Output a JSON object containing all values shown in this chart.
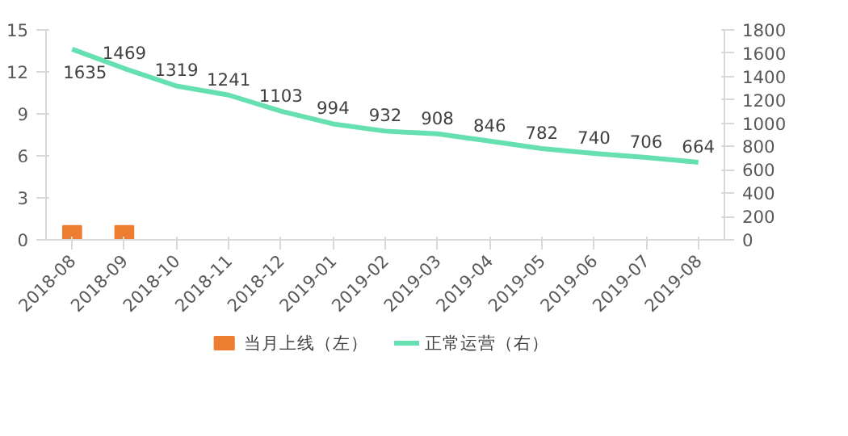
{
  "chart_data": {
    "type": "bar",
    "categories": [
      "2018-08",
      "2018-09",
      "2018-10",
      "2018-11",
      "2018-12",
      "2019-01",
      "2019-02",
      "2019-03",
      "2019-04",
      "2019-05",
      "2019-06",
      "2019-07",
      "2019-08"
    ],
    "series": [
      {
        "name": "当月上线（左）",
        "color": "#ed7d31",
        "values": [
          1,
          1,
          0,
          0,
          0,
          0,
          0,
          0,
          0,
          0,
          0,
          0,
          0
        ]
      },
      {
        "name": "正常运营（右）",
        "type": "line",
        "axis": "y2",
        "color": "#66e0b0",
        "values": [
          1635,
          1469,
          1319,
          1241,
          1103,
          994,
          932,
          908,
          846,
          782,
          740,
          706,
          664
        ],
        "value_labels": [
          "1635",
          "1469",
          "1319",
          "1241",
          "1103",
          "994",
          "932",
          "908",
          "846",
          "782",
          "740",
          "706",
          "664"
        ]
      }
    ],
    "ylim": [
      0,
      15
    ],
    "yticks": [
      0,
      3,
      6,
      9,
      12,
      15
    ],
    "y2lim": [
      0,
      1800
    ],
    "y2ticks": [
      0,
      200,
      400,
      600,
      800,
      1000,
      1200,
      1400,
      1600,
      1800
    ],
    "grid": false,
    "legend": "bottom",
    "marker": "none",
    "line_style": "solid"
  }
}
